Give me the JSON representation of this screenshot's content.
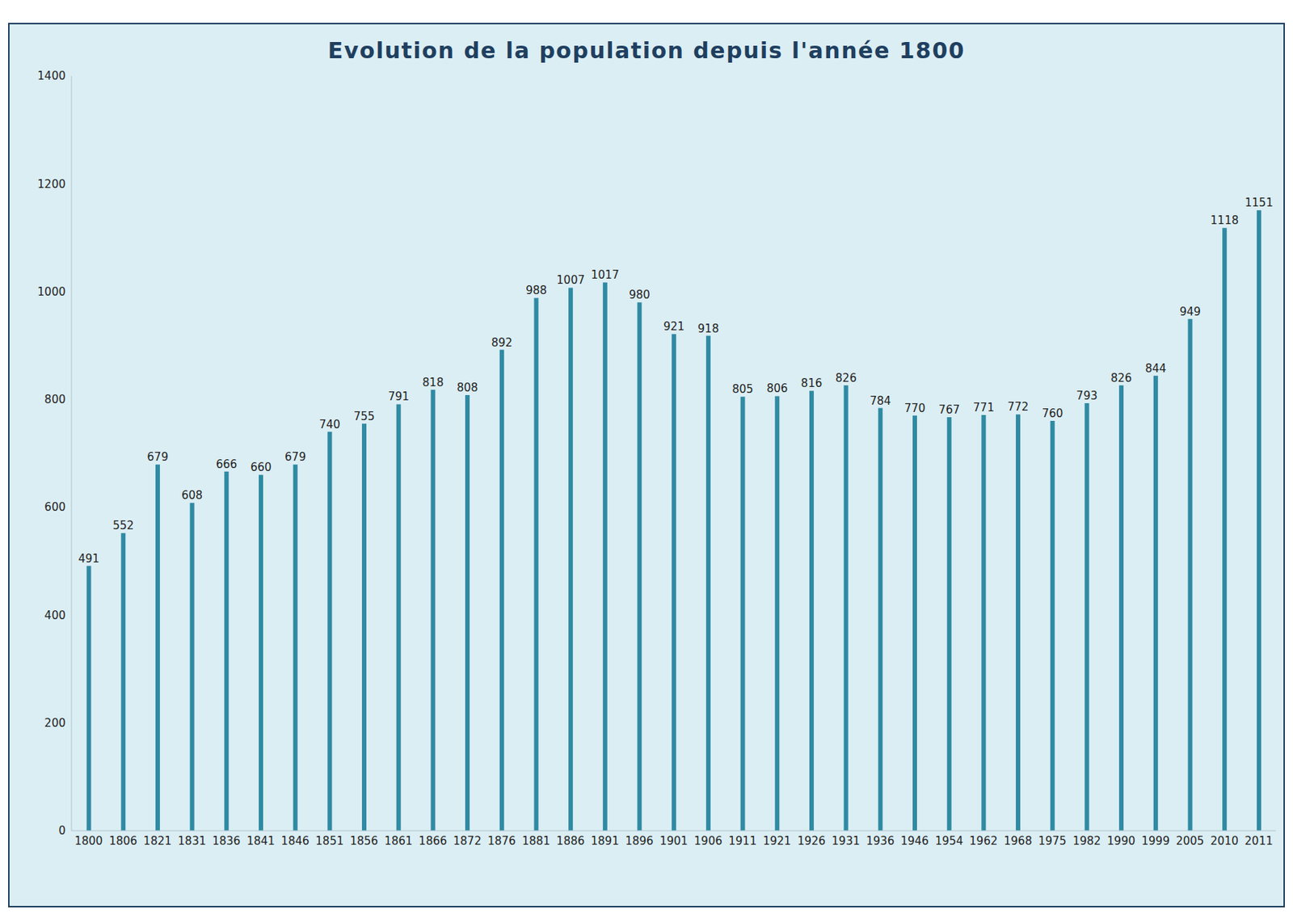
{
  "chart_data": {
    "type": "bar",
    "title": "Evolution de la population depuis l'année 1800",
    "categories": [
      "1800",
      "1806",
      "1821",
      "1831",
      "1836",
      "1841",
      "1846",
      "1851",
      "1856",
      "1861",
      "1866",
      "1872",
      "1876",
      "1881",
      "1886",
      "1891",
      "1896",
      "1901",
      "1906",
      "1911",
      "1921",
      "1926",
      "1931",
      "1936",
      "1946",
      "1954",
      "1962",
      "1968",
      "1975",
      "1982",
      "1990",
      "1999",
      "2005",
      "2010",
      "2011"
    ],
    "values": [
      491,
      552,
      679,
      608,
      666,
      660,
      679,
      740,
      755,
      791,
      818,
      808,
      892,
      988,
      1007,
      1017,
      980,
      921,
      918,
      805,
      806,
      816,
      826,
      784,
      770,
      767,
      771,
      772,
      760,
      793,
      826,
      844,
      949,
      1118,
      1151
    ],
    "color": "#2f8aa3",
    "ylim": [
      0,
      1400
    ],
    "yticks": [
      0,
      200,
      400,
      600,
      800,
      1000,
      1200,
      1400
    ],
    "grid": false,
    "data_labels": true
  }
}
